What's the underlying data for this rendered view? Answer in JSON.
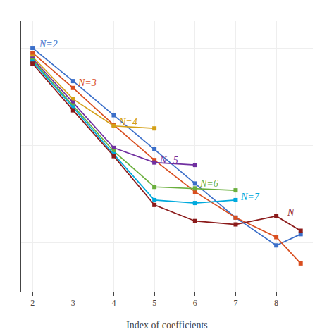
{
  "chart_data": {
    "type": "line",
    "xlabel": "Index of coefficients",
    "series": [
      {
        "name": "N=2",
        "color": "#3B6FC9",
        "label_x": 2.12,
        "label_y": 0.08,
        "x": [
          2,
          3,
          4,
          5,
          6,
          7,
          8,
          8.6
        ],
        "values": [
          0.0,
          -0.68,
          -1.38,
          -2.08,
          -2.78,
          -3.48,
          -4.05,
          -3.82
        ]
      },
      {
        "name": "N=3",
        "color": "#D94E1F",
        "label_x": 3.08,
        "label_y": -0.72,
        "x": [
          2,
          3,
          4,
          5,
          6,
          7,
          8,
          8.6
        ],
        "values": [
          -0.1,
          -0.82,
          -1.58,
          -2.3,
          -2.95,
          -3.48,
          -3.88,
          -4.42
        ]
      },
      {
        "name": "N=4",
        "color": "#D4A017",
        "label_x": 4.08,
        "label_y": -1.52,
        "x": [
          2,
          3,
          4,
          5
        ],
        "values": [
          -0.18,
          -1.05,
          -1.6,
          -1.65
        ]
      },
      {
        "name": "N=5",
        "color": "#7030A0",
        "label_x": 5.08,
        "label_y": -2.3,
        "x": [
          2,
          3,
          4,
          5,
          6
        ],
        "values": [
          -0.22,
          -1.12,
          -2.05,
          -2.35,
          -2.4
        ]
      },
      {
        "name": "N=6",
        "color": "#6AAF3D",
        "label_x": 6.08,
        "label_y": -2.78,
        "x": [
          2,
          3,
          4,
          5,
          6,
          7
        ],
        "values": [
          -0.25,
          -1.18,
          -2.12,
          -2.85,
          -2.88,
          -2.92
        ]
      },
      {
        "name": "N=7",
        "color": "#00AADD",
        "label_x": 7.08,
        "label_y": -3.05,
        "x": [
          2,
          3,
          4,
          5,
          6,
          7
        ],
        "values": [
          -0.28,
          -1.22,
          -2.18,
          -3.12,
          -3.18,
          -3.12
        ]
      },
      {
        "name": "N",
        "color": "#8B1A1A",
        "label_x": 8.22,
        "label_y": -3.38,
        "x": [
          2,
          3,
          4,
          5,
          6,
          7,
          8,
          8.6
        ],
        "values": [
          -0.32,
          -1.28,
          -2.22,
          -3.22,
          -3.55,
          -3.62,
          -3.45,
          -3.75
        ]
      }
    ],
    "xlim": [
      1.72,
      8.9
    ],
    "xticks": [
      2,
      3,
      4,
      5,
      6,
      7,
      8
    ],
    "ylim": [
      -5.0,
      0.55
    ],
    "yticks": [
      -5,
      -4,
      -3,
      -2,
      -1,
      0
    ],
    "grid": true,
    "tick_labels": "x",
    "marker": "square",
    "line_style": "solid"
  }
}
